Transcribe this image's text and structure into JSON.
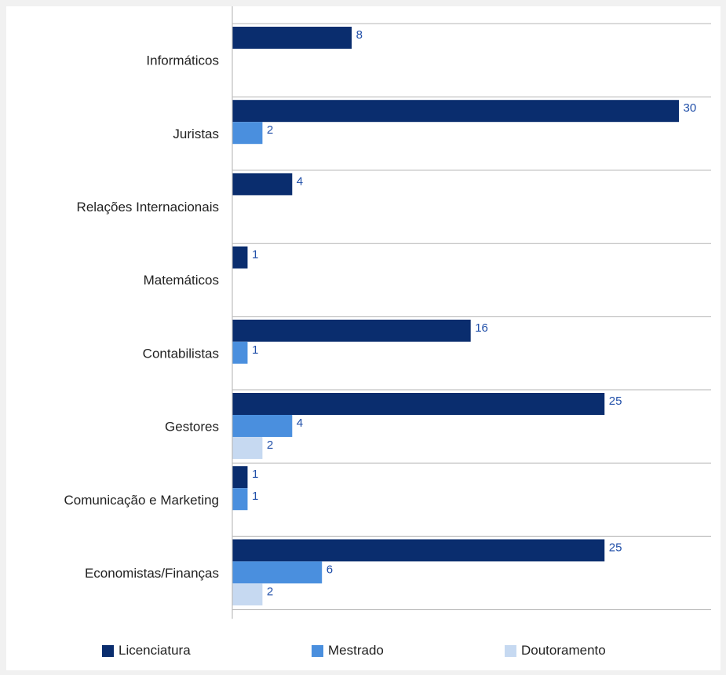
{
  "chart_data": {
    "type": "bar",
    "orientation": "horizontal",
    "categories": [
      "Informáticos",
      "Juristas",
      "Relações Internacionais",
      "Matemáticos",
      "Contabilistas",
      "Gestores",
      "Comunicação e Marketing",
      "Economistas/Finanças"
    ],
    "series": [
      {
        "name": "Licenciatura",
        "color": "#0a2d6e",
        "values": [
          8,
          30,
          4,
          1,
          16,
          25,
          1,
          25
        ]
      },
      {
        "name": "Mestrado",
        "color": "#4a8fde",
        "values": [
          null,
          2,
          null,
          null,
          1,
          4,
          1,
          6
        ]
      },
      {
        "name": "Doutoramento",
        "color": "#c6d9f1",
        "values": [
          null,
          null,
          null,
          null,
          null,
          2,
          null,
          2
        ]
      }
    ],
    "xlim": [
      0,
      32
    ],
    "grid": true,
    "legend_position": "bottom",
    "value_label_color": "#1f4ea8"
  }
}
